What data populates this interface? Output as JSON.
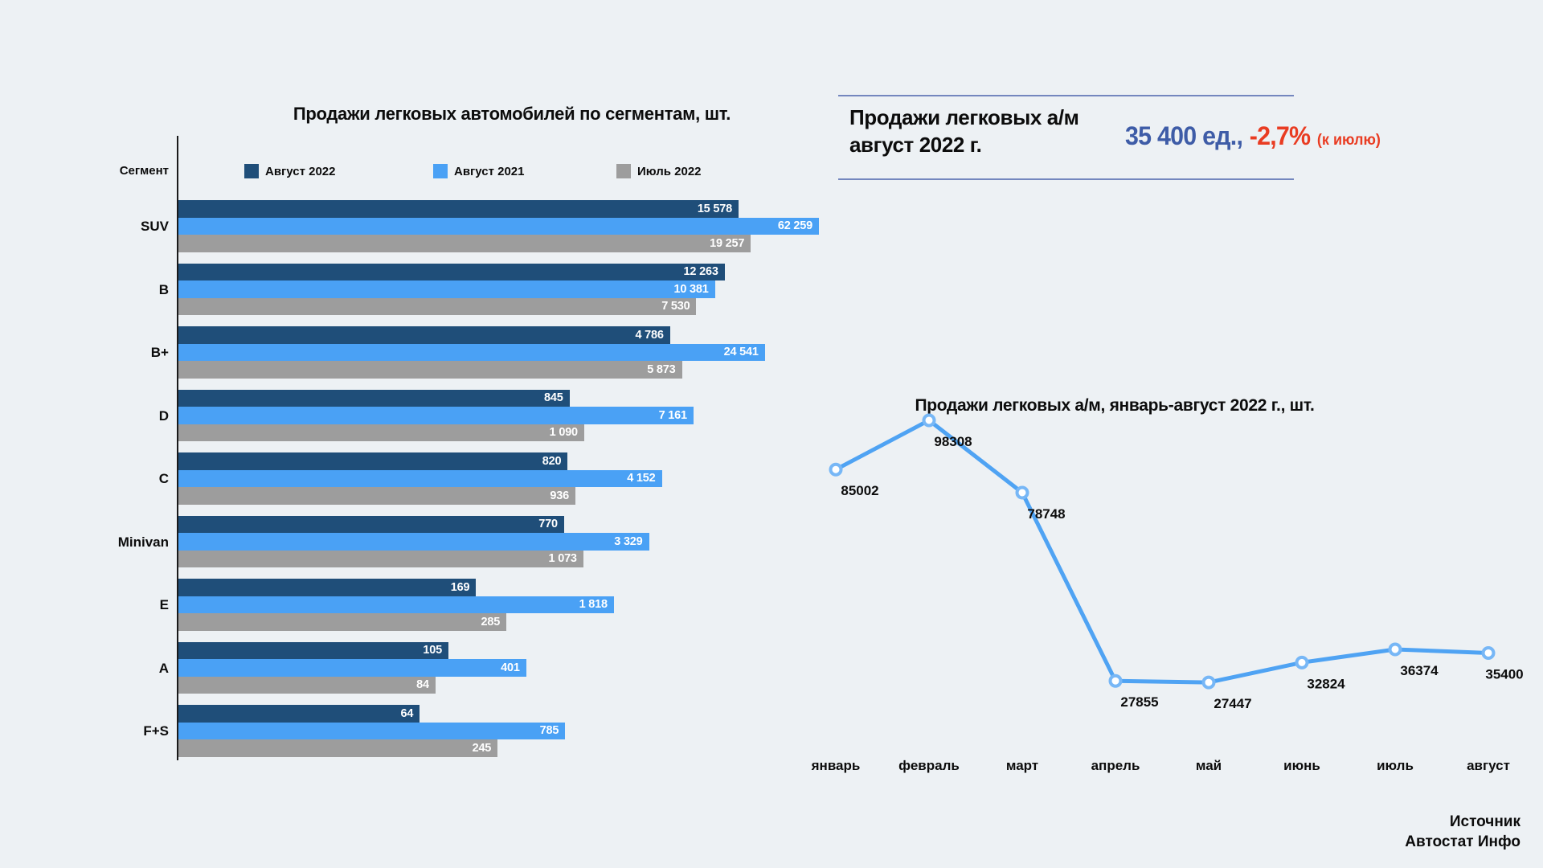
{
  "page": {
    "background": "#EDF1F4"
  },
  "chart_data": [
    {
      "type": "bar",
      "orientation": "horizontal",
      "scale": "log10",
      "title": "Продажи легковых автомобилей по сегментам, шт.",
      "axis_label": "Сегмент",
      "legend_position": "top",
      "grid": false,
      "categories": [
        "SUV",
        "B",
        "B+",
        "D",
        "C",
        "Minivan",
        "E",
        "A",
        "F+S"
      ],
      "series": [
        {
          "name": "Август 2022",
          "color": "#1F4E79",
          "values": [
            15578,
            12263,
            4786,
            845,
            820,
            770,
            169,
            105,
            64
          ]
        },
        {
          "name": "Август 2021",
          "color": "#4AA1F5",
          "values": [
            62259,
            10381,
            24541,
            7161,
            4152,
            3329,
            1818,
            401,
            785
          ]
        },
        {
          "name": "Июль 2022",
          "color": "#9D9D9D",
          "values": [
            19257,
            7530,
            5873,
            1090,
            936,
            1073,
            285,
            84,
            245
          ]
        }
      ],
      "value_label_color": "#FFFFFF"
    },
    {
      "type": "line",
      "title": "Продажи легковых а/м, январь-август 2022 г., шт.",
      "x": [
        "январь",
        "февраль",
        "март",
        "апрель",
        "май",
        "июнь",
        "июль",
        "август"
      ],
      "values": [
        85002,
        98308,
        78748,
        27855,
        27447,
        32824,
        36374,
        35400
      ],
      "ylim": [
        20000,
        105000
      ],
      "grid": false,
      "line_color": "#4FA3F3",
      "marker": "open-circle",
      "marker_fill": "#FFFFFF",
      "marker_stroke": "#77B7F6",
      "label_color": "#0c0c0c"
    }
  ],
  "summary_card": {
    "title_line1": "Продажи легковых а/м",
    "title_line2": "август 2022 г.",
    "value": "35 400 ед.,",
    "value_color": "#3E5CA7",
    "change": "-2,7%",
    "change_note": "(к июлю)",
    "change_color": "#E93C22"
  },
  "source": {
    "line1": "Источник",
    "line2": "Автостат Инфо"
  }
}
